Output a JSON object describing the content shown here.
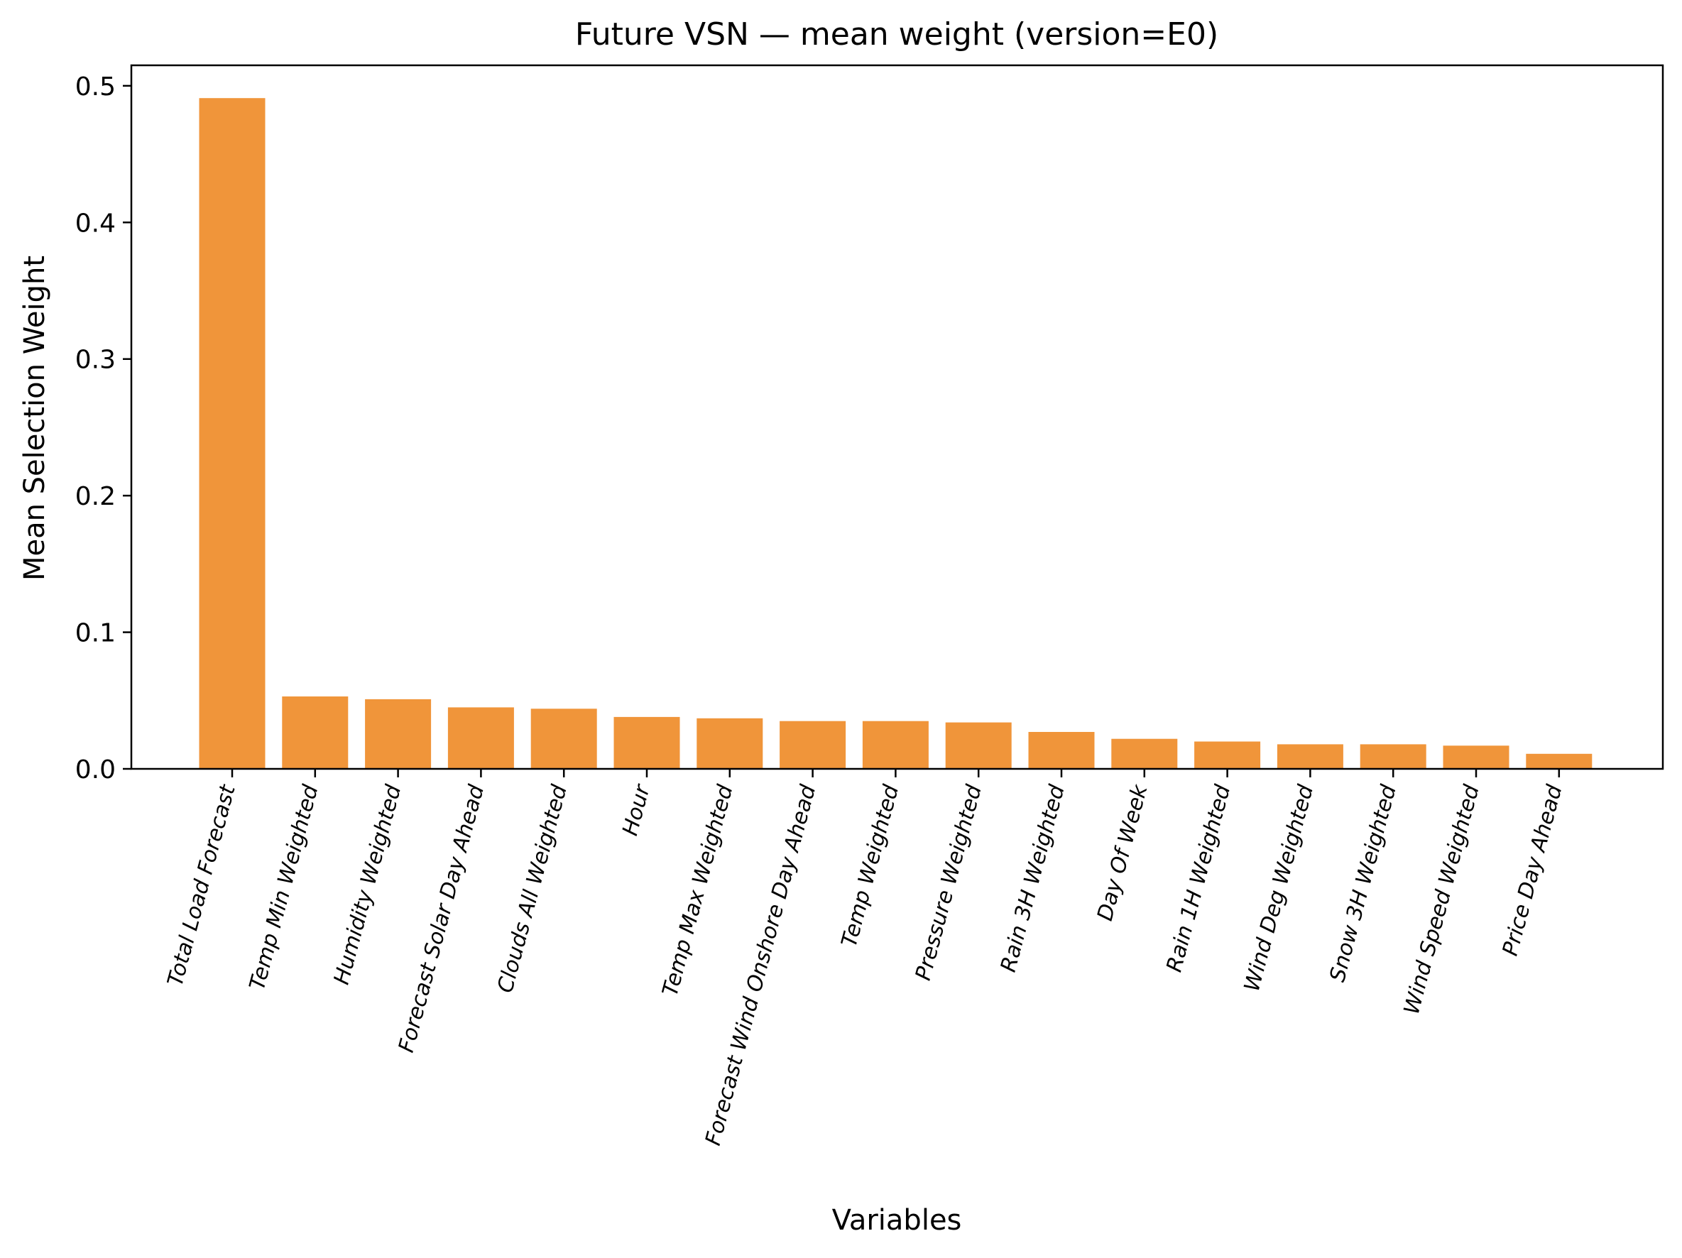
{
  "chart_data": {
    "type": "bar",
    "title": "Future VSN — mean weight (version=E0)",
    "xlabel": "Variables",
    "ylabel": "Mean Selection Weight",
    "categories": [
      "Total Load Forecast",
      "Temp Min Weighted",
      "Humidity Weighted",
      "Forecast Solar Day Ahead",
      "Clouds All Weighted",
      "Hour",
      "Temp Max Weighted",
      "Forecast Wind Onshore Day Ahead",
      "Temp Weighted",
      "Pressure Weighted",
      "Rain 3H Weighted",
      "Day Of Week",
      "Rain 1H Weighted",
      "Wind Deg Weighted",
      "Snow 3H Weighted",
      "Wind Speed Weighted",
      "Price Day Ahead"
    ],
    "values": [
      0.491,
      0.053,
      0.051,
      0.045,
      0.044,
      0.038,
      0.037,
      0.035,
      0.035,
      0.034,
      0.027,
      0.022,
      0.02,
      0.018,
      0.018,
      0.017,
      0.011
    ],
    "ylim": [
      0.0,
      0.515
    ],
    "yticks": [
      0.0,
      0.1,
      0.2,
      0.3,
      0.4,
      0.5
    ],
    "ytick_labels": [
      "0.0",
      "0.1",
      "0.2",
      "0.3",
      "0.4",
      "0.5"
    ],
    "bar_color": "#f0953a",
    "grid": false,
    "legend": "none"
  }
}
